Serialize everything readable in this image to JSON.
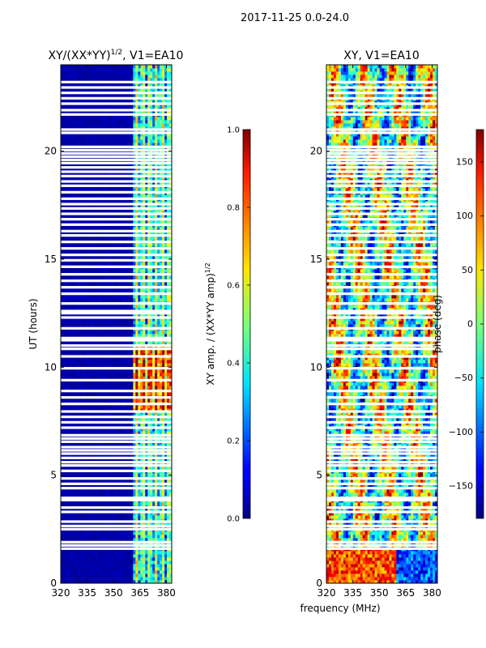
{
  "figure": {
    "suptitle": "2017-11-25 0.0-24.0",
    "shared_xlabel": "frequency (MHz)"
  },
  "colors": {
    "background": "#ffffff",
    "jet_low": "#00007f",
    "jet_mid": "#7fff7f",
    "jet_high": "#7f0000",
    "flag": "#ffffff"
  },
  "chart_data": [
    {
      "type": "heatmap",
      "title_main": "XY/(XX*YY)",
      "title_exp": "1/2",
      "title_tail": ", V1=EA10",
      "x": [
        320,
        383
      ],
      "xticks": [
        320,
        335,
        350,
        365,
        380
      ],
      "xticklabels": [
        "320",
        "335",
        "350",
        "365",
        "380"
      ],
      "xlabel": "",
      "ylabel": "UT (hours)",
      "ylim": [
        0,
        24
      ],
      "yticks": [
        0,
        5,
        10,
        15,
        20
      ],
      "yticklabels": [
        "0",
        "5",
        "10",
        "15",
        "20"
      ],
      "colorscale": "jet",
      "description_of_signal": "dark blue background below 360 MHz; strong structured correlation above 360 MHz",
      "colorbar": {
        "label_main": "XY amp. / (XX*YY amp)",
        "label_exp": "1/2",
        "range": [
          0.0,
          1.0
        ],
        "ticks": [
          0.0,
          0.2,
          0.4,
          0.6,
          0.8,
          1.0
        ],
        "ticklabels": [
          "0.0",
          "0.2",
          "0.4",
          "0.6",
          "0.8",
          "1.0"
        ]
      }
    },
    {
      "type": "heatmap",
      "title": "XY, V1=EA10",
      "x": [
        320,
        383
      ],
      "xticks": [
        320,
        335,
        350,
        365,
        380
      ],
      "xticklabels": [
        "320",
        "335",
        "350",
        "365",
        "380"
      ],
      "xlabel": "frequency (MHz)",
      "ylabel": "",
      "ylim": [
        0,
        24
      ],
      "yticks": [
        0,
        5,
        10,
        15,
        20
      ],
      "yticklabels": [
        "0",
        "5",
        "10",
        "15",
        "20"
      ],
      "colorscale": "jet",
      "colorbar": {
        "label": "phase (deg)",
        "range": [
          -180,
          180
        ],
        "ticks": [
          -150,
          -100,
          -50,
          0,
          50,
          100,
          150
        ],
        "ticklabels": [
          "−150",
          "−100",
          "−50",
          "0",
          "50",
          "100",
          "150"
        ]
      }
    }
  ],
  "flagged_hours": [
    1.6,
    1.75,
    1.9,
    2.5,
    2.65,
    2.85,
    3.3,
    3.5,
    3.85,
    3.95,
    4.4,
    4.6,
    4.85,
    5.2,
    5.45,
    5.6,
    5.8,
    6.0,
    6.15,
    6.3,
    6.55,
    6.7,
    6.85,
    7.2,
    7.45,
    7.7,
    7.95,
    8.3,
    8.6,
    8.9,
    9.4,
    9.95,
    10.5,
    10.85,
    11.0,
    11.25,
    11.35,
    11.8,
    12.3,
    12.5,
    12.6,
    12.95,
    13.4,
    13.7,
    14.0,
    14.3,
    14.65,
    14.95,
    15.2,
    15.5,
    15.8,
    16.1,
    16.3,
    16.6,
    16.85,
    17.1,
    17.35,
    17.55,
    17.8,
    18.1,
    18.4,
    18.6,
    18.85,
    19.05,
    19.25,
    19.45,
    19.6,
    19.75,
    19.9,
    20.05,
    20.2,
    20.85,
    21.0,
    21.7,
    21.9,
    22.2,
    22.45,
    22.7,
    22.95,
    23.2
  ]
}
